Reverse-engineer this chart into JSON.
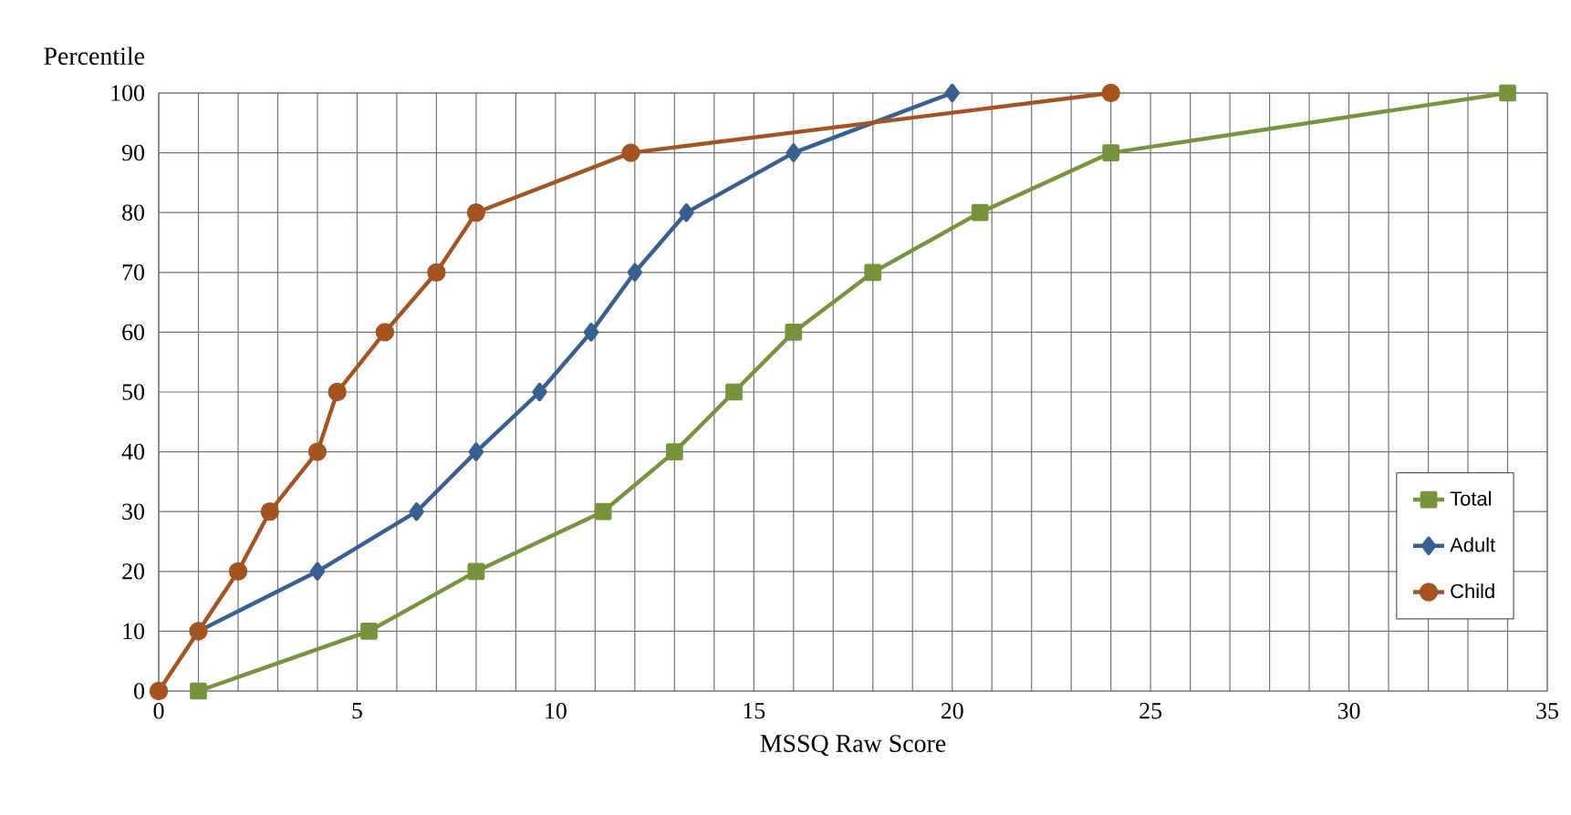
{
  "chart_data": {
    "type": "line",
    "xlabel": "MSSQ Raw Score",
    "ylabel": "Percentile",
    "xlim": [
      0,
      35
    ],
    "ylim": [
      0,
      100
    ],
    "xticks": [
      0,
      {
        "value": 1,
        "label": null
      },
      {
        "value": 2,
        "label": null
      },
      {
        "value": 3,
        "label": null
      },
      {
        "value": 4,
        "label": null
      },
      5,
      {
        "value": 6,
        "label": null
      },
      {
        "value": 7,
        "label": null
      },
      {
        "value": 8,
        "label": null
      },
      {
        "value": 9,
        "label": null
      },
      10,
      {
        "value": 11,
        "label": null
      },
      {
        "value": 12,
        "label": null
      },
      {
        "value": 13,
        "label": null
      },
      {
        "value": 14,
        "label": null
      },
      15,
      {
        "value": 16,
        "label": null
      },
      {
        "value": 17,
        "label": null
      },
      {
        "value": 18,
        "label": null
      },
      {
        "value": 19,
        "label": null
      },
      20,
      {
        "value": 21,
        "label": null
      },
      {
        "value": 22,
        "label": null
      },
      {
        "value": 23,
        "label": null
      },
      {
        "value": 24,
        "label": null
      },
      25,
      {
        "value": 26,
        "label": null
      },
      {
        "value": 27,
        "label": null
      },
      {
        "value": 28,
        "label": null
      },
      {
        "value": 29,
        "label": null
      },
      30,
      {
        "value": 31,
        "label": null
      },
      {
        "value": 32,
        "label": null
      },
      {
        "value": 33,
        "label": null
      },
      {
        "value": 34,
        "label": null
      },
      35
    ],
    "yticks": [
      0,
      10,
      20,
      30,
      40,
      50,
      60,
      70,
      80,
      90,
      100
    ],
    "grid": true,
    "legend": "bottom right",
    "line_style": "solid",
    "series": [
      {
        "name": "Total",
        "color": "#77933c",
        "marker": "square",
        "x": [
          1,
          5.3,
          8,
          11.2,
          13,
          14.5,
          16,
          18,
          20.7,
          24,
          34
        ],
        "values": [
          0,
          10,
          20,
          30,
          40,
          50,
          60,
          70,
          80,
          90,
          100
        ]
      },
      {
        "name": "Adult",
        "color": "#376092",
        "marker": "diamond",
        "x": [
          1,
          4,
          6.5,
          8,
          9.6,
          10.9,
          12,
          13.3,
          16,
          20
        ],
        "values": [
          10,
          20,
          30,
          40,
          50,
          60,
          70,
          80,
          90,
          100
        ]
      },
      {
        "name": "Child",
        "color": "#a5541f",
        "marker": "circle",
        "x": [
          0,
          1,
          2,
          2.8,
          4,
          4.5,
          5.7,
          7,
          8,
          11.9,
          24
        ],
        "values": [
          0,
          10,
          20,
          30,
          40,
          50,
          60,
          70,
          80,
          90,
          100
        ]
      }
    ]
  }
}
